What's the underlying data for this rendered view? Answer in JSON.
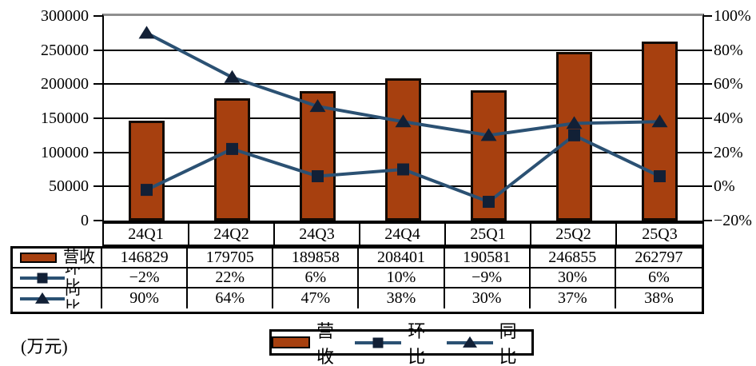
{
  "unit_label": "(万元)",
  "colors": {
    "bar_fill": "#A7400F",
    "bar_border": "#120A04",
    "line": "#2B5173",
    "marker": "#122036",
    "grid": "#000000",
    "plot_top_border": "#8F8F8F"
  },
  "chart_data": {
    "type": "bar",
    "subtype": "bar-line-combo",
    "categories": [
      "24Q1",
      "24Q2",
      "24Q3",
      "24Q4",
      "25Q1",
      "25Q2",
      "25Q3"
    ],
    "series": [
      {
        "name": "营收",
        "type": "bar",
        "axis": "left",
        "values": [
          146829,
          179705,
          189858,
          208401,
          190581,
          246855,
          262797
        ],
        "display": [
          "146829",
          "179705",
          "189858",
          "208401",
          "190581",
          "246855",
          "262797"
        ]
      },
      {
        "name": "环比",
        "type": "line",
        "marker": "square",
        "axis": "right",
        "values": [
          -2,
          22,
          6,
          10,
          -9,
          30,
          6
        ],
        "display": [
          "−2%",
          "22%",
          "6%",
          "10%",
          "−9%",
          "30%",
          "6%"
        ]
      },
      {
        "name": "同比",
        "type": "line",
        "marker": "triangle",
        "axis": "right",
        "values": [
          90,
          64,
          47,
          38,
          30,
          37,
          38
        ],
        "display": [
          "90%",
          "64%",
          "47%",
          "38%",
          "30%",
          "37%",
          "38%"
        ]
      }
    ],
    "left_axis": {
      "min": 0,
      "max": 300000,
      "ticks": [
        "300000",
        "250000",
        "200000",
        "150000",
        "100000",
        "50000",
        "0"
      ]
    },
    "right_axis": {
      "min": -20,
      "max": 100,
      "ticks": [
        "100%",
        "80%",
        "60%",
        "40%",
        "20%",
        "0%",
        "−20%"
      ]
    },
    "grid": true,
    "legend_position": "bottom",
    "title": ""
  }
}
